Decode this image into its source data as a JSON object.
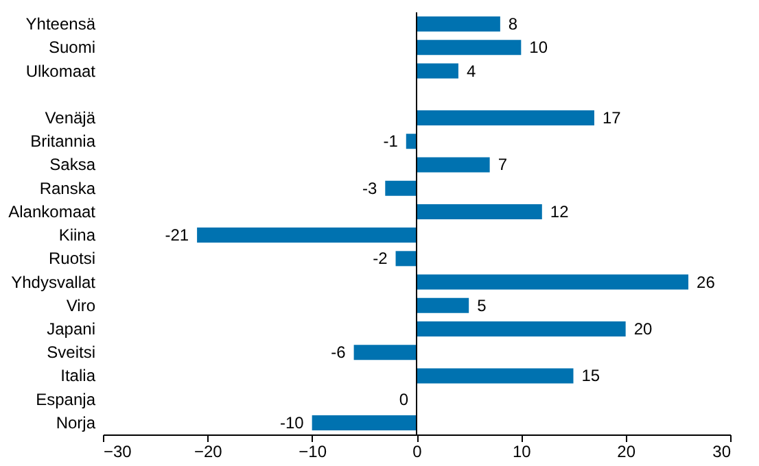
{
  "chart_data": {
    "type": "bar",
    "orientation": "horizontal",
    "categories": [
      "Yhteensä",
      "Suomi",
      "Ulkomaat",
      null,
      "Venäjä",
      "Britannia",
      "Saksa",
      "Ranska",
      "Alankomaat",
      "Kiina",
      "Ruotsi",
      "Yhdysvallat",
      "Viro",
      "Japani",
      "Sveitsi",
      "Italia",
      "Espanja",
      "Norja"
    ],
    "values": [
      8,
      10,
      4,
      null,
      17,
      -1,
      7,
      -3,
      12,
      -21,
      -2,
      26,
      5,
      20,
      -6,
      15,
      0,
      -10
    ],
    "color": "#0072b0",
    "xlim": [
      -30,
      30
    ],
    "xticks": [
      -30,
      -20,
      -10,
      0,
      10,
      20,
      30
    ],
    "data_labels": true,
    "ref_lines": [
      {
        "axis": "x",
        "value": 0
      }
    ]
  }
}
